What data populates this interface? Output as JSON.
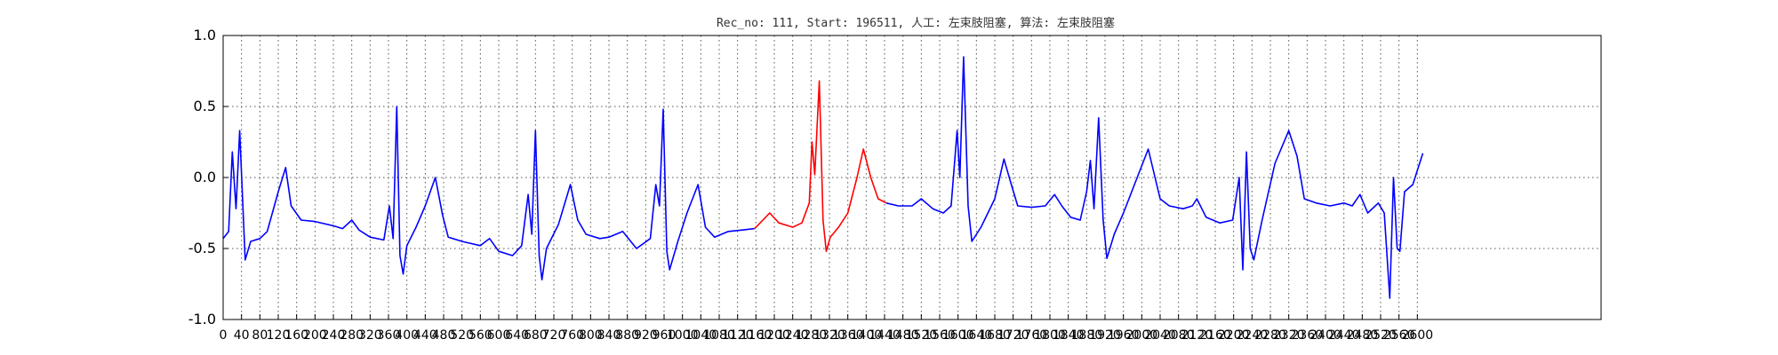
{
  "chart_data": {
    "type": "line",
    "title": "Rec_no: 111, Start: 196511, 人工: 左束肢阻塞, 算法: 左束肢阻塞",
    "xlabel": "",
    "ylabel": "",
    "xlim": [
      0,
      3000
    ],
    "ylim": [
      -1.0,
      1.0
    ],
    "grid": true,
    "x_ticks": [
      "0",
      "40",
      "80",
      "120",
      "160",
      "200",
      "240",
      "280",
      "320",
      "360",
      "400",
      "440",
      "480",
      "520",
      "560",
      "600",
      "640",
      "680",
      "720",
      "760",
      "800",
      "840",
      "880",
      "920",
      "960",
      "1000",
      "1040",
      "1080",
      "1120",
      "1160",
      "1200",
      "1240",
      "1280",
      "1320",
      "1360",
      "1400",
      "1440",
      "1480",
      "1520",
      "1560",
      "1600",
      "1640",
      "1680",
      "1720",
      "1760",
      "1800",
      "1840",
      "1880",
      "1920",
      "1960",
      "2000",
      "2040",
      "2080",
      "2120",
      "2160",
      "2200",
      "2240",
      "2280",
      "2320",
      "2360",
      "2400",
      "2440",
      "2480",
      "2520",
      "2560",
      "2600"
    ],
    "y_ticks": [
      "1.0",
      "0.5",
      "0.0",
      "-0.5",
      "-1.0"
    ],
    "series": [
      {
        "color": "#0000ff",
        "points": [
          [
            0,
            -0.43
          ],
          [
            12,
            -0.38
          ],
          [
            20,
            0.18
          ],
          [
            28,
            -0.22
          ],
          [
            36,
            0.33
          ],
          [
            48,
            -0.58
          ],
          [
            60,
            -0.45
          ],
          [
            80,
            -0.43
          ],
          [
            96,
            -0.38
          ],
          [
            120,
            -0.1
          ],
          [
            136,
            0.07
          ],
          [
            148,
            -0.2
          ],
          [
            170,
            -0.3
          ],
          [
            200,
            -0.31
          ],
          [
            240,
            -0.34
          ],
          [
            260,
            -0.36
          ],
          [
            280,
            -0.3
          ],
          [
            296,
            -0.37
          ],
          [
            320,
            -0.42
          ],
          [
            350,
            -0.44
          ],
          [
            362,
            -0.2
          ],
          [
            370,
            -0.43
          ],
          [
            378,
            0.5
          ],
          [
            385,
            -0.55
          ],
          [
            392,
            -0.68
          ],
          [
            400,
            -0.48
          ],
          [
            420,
            -0.35
          ],
          [
            440,
            -0.2
          ],
          [
            462,
            0.0
          ],
          [
            478,
            -0.27
          ],
          [
            490,
            -0.42
          ],
          [
            520,
            -0.45
          ],
          [
            560,
            -0.48
          ],
          [
            580,
            -0.43
          ],
          [
            600,
            -0.52
          ],
          [
            630,
            -0.55
          ],
          [
            650,
            -0.48
          ],
          [
            664,
            -0.12
          ],
          [
            672,
            -0.4
          ],
          [
            680,
            0.33
          ],
          [
            688,
            -0.55
          ],
          [
            694,
            -0.72
          ],
          [
            704,
            -0.5
          ],
          [
            730,
            -0.33
          ],
          [
            756,
            -0.05
          ],
          [
            772,
            -0.3
          ],
          [
            790,
            -0.4
          ],
          [
            820,
            -0.43
          ],
          [
            840,
            -0.42
          ],
          [
            870,
            -0.38
          ],
          [
            880,
            -0.42
          ],
          [
            900,
            -0.5
          ],
          [
            930,
            -0.43
          ],
          [
            942,
            -0.05
          ],
          [
            950,
            -0.2
          ],
          [
            958,
            0.48
          ],
          [
            966,
            -0.52
          ],
          [
            972,
            -0.65
          ],
          [
            990,
            -0.45
          ],
          [
            1010,
            -0.25
          ],
          [
            1034,
            -0.05
          ],
          [
            1050,
            -0.35
          ],
          [
            1070,
            -0.42
          ],
          [
            1100,
            -0.38
          ],
          [
            1130,
            -0.37
          ],
          [
            1157,
            -0.36
          ]
        ]
      },
      {
        "color": "#ff0000",
        "points": [
          [
            1157,
            -0.36
          ],
          [
            1175,
            -0.3
          ],
          [
            1190,
            -0.25
          ],
          [
            1210,
            -0.32
          ],
          [
            1240,
            -0.35
          ],
          [
            1260,
            -0.32
          ],
          [
            1276,
            -0.18
          ],
          [
            1282,
            0.25
          ],
          [
            1288,
            0.02
          ],
          [
            1298,
            0.68
          ],
          [
            1306,
            -0.3
          ],
          [
            1313,
            -0.52
          ],
          [
            1322,
            -0.42
          ],
          [
            1340,
            -0.35
          ],
          [
            1360,
            -0.25
          ],
          [
            1380,
            0.0
          ],
          [
            1394,
            0.2
          ],
          [
            1410,
            0.0
          ],
          [
            1426,
            -0.15
          ],
          [
            1444,
            -0.18
          ]
        ]
      },
      {
        "color": "#0000ff",
        "points": [
          [
            1444,
            -0.18
          ],
          [
            1470,
            -0.2
          ],
          [
            1500,
            -0.2
          ],
          [
            1520,
            -0.15
          ],
          [
            1545,
            -0.22
          ],
          [
            1568,
            -0.25
          ],
          [
            1585,
            -0.2
          ],
          [
            1598,
            0.33
          ],
          [
            1604,
            0.0
          ],
          [
            1612,
            0.85
          ],
          [
            1622,
            -0.2
          ],
          [
            1630,
            -0.45
          ],
          [
            1650,
            -0.35
          ],
          [
            1680,
            -0.15
          ],
          [
            1700,
            0.13
          ],
          [
            1716,
            -0.05
          ],
          [
            1730,
            -0.2
          ],
          [
            1760,
            -0.21
          ],
          [
            1790,
            -0.2
          ],
          [
            1810,
            -0.12
          ],
          [
            1826,
            -0.2
          ],
          [
            1845,
            -0.28
          ],
          [
            1866,
            -0.3
          ],
          [
            1880,
            -0.1
          ],
          [
            1888,
            0.12
          ],
          [
            1896,
            -0.22
          ],
          [
            1906,
            0.42
          ],
          [
            1916,
            -0.3
          ],
          [
            1924,
            -0.57
          ],
          [
            1940,
            -0.4
          ],
          [
            1960,
            -0.25
          ],
          [
            1990,
            0.0
          ],
          [
            2014,
            0.2
          ],
          [
            2040,
            -0.15
          ],
          [
            2060,
            -0.2
          ],
          [
            2090,
            -0.22
          ],
          [
            2110,
            -0.2
          ],
          [
            2120,
            -0.15
          ],
          [
            2140,
            -0.28
          ],
          [
            2170,
            -0.32
          ],
          [
            2198,
            -0.3
          ],
          [
            2212,
            0.0
          ],
          [
            2220,
            -0.65
          ],
          [
            2228,
            0.18
          ],
          [
            2236,
            -0.5
          ],
          [
            2244,
            -0.58
          ],
          [
            2262,
            -0.3
          ],
          [
            2290,
            0.1
          ],
          [
            2320,
            0.33
          ],
          [
            2338,
            0.15
          ],
          [
            2354,
            -0.15
          ],
          [
            2380,
            -0.18
          ],
          [
            2410,
            -0.2
          ],
          [
            2440,
            -0.18
          ],
          [
            2458,
            -0.2
          ],
          [
            2475,
            -0.12
          ],
          [
            2492,
            -0.25
          ],
          [
            2515,
            -0.18
          ],
          [
            2528,
            -0.25
          ],
          [
            2540,
            -0.85
          ],
          [
            2548,
            0.0
          ],
          [
            2556,
            -0.5
          ],
          [
            2562,
            -0.52
          ],
          [
            2572,
            -0.1
          ],
          [
            2590,
            -0.05
          ],
          [
            2600,
            0.05
          ],
          [
            2612,
            0.17
          ]
        ]
      }
    ]
  }
}
